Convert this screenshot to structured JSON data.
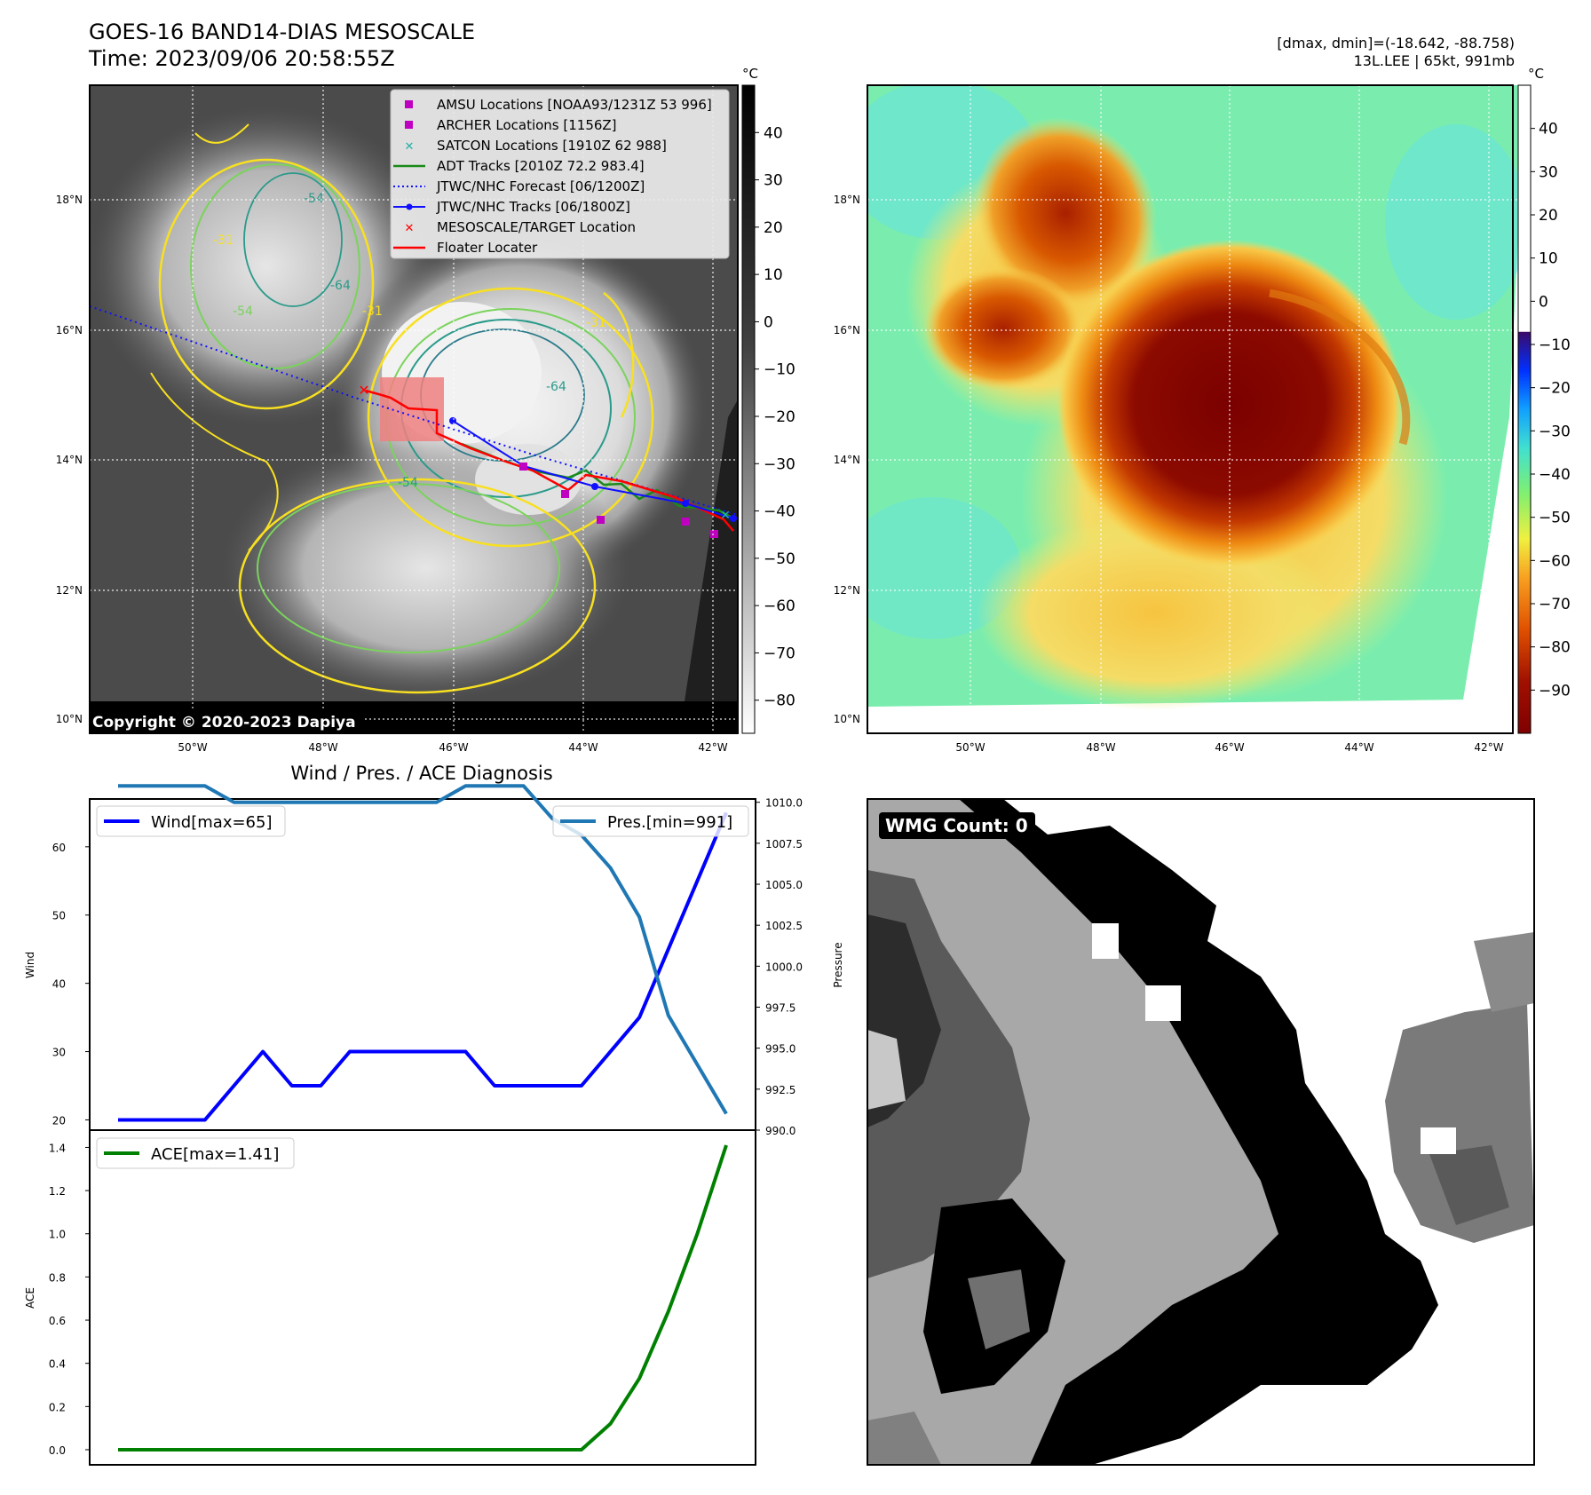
{
  "header": {
    "title": "GOES-16 BAND14-DIAS MESOSCALE",
    "time": "Time: 2023/09/06 20:58:55Z",
    "dmax_dmin": "[dmax, dmin]=(-18.642, -88.758)",
    "storm": "13L.LEE | 65kt, 991mb"
  },
  "map_axes": {
    "lon_ticks": [
      "50°W",
      "48°W",
      "46°W",
      "44°W",
      "42°W"
    ],
    "lat_ticks": [
      "18°N",
      "16°N",
      "14°N",
      "12°N",
      "10°N"
    ]
  },
  "left_map": {
    "copyright": "Copyright © 2020-2023 Dapiya",
    "contour_labels": [
      "-31",
      "-54",
      "-64",
      "-31",
      "-54",
      "-31",
      "-64",
      "-54"
    ],
    "legend": [
      {
        "label": "AMSU Locations [NOAA93/1231Z 53 996]",
        "color": "#c000c0",
        "marker": "square"
      },
      {
        "label": "ARCHER Locations [1156Z]",
        "color": "#c000c0",
        "marker": "square"
      },
      {
        "label": "SATCON Locations [1910Z 62 988]",
        "color": "#20b2aa",
        "marker": "x"
      },
      {
        "label": "ADT Tracks [2010Z 72.2 983.4]",
        "color": "#1a8a1a",
        "marker": "line"
      },
      {
        "label": "JTWC/NHC Forecast [06/1200Z]",
        "color": "#1010ff",
        "marker": "dotted"
      },
      {
        "label": "JTWC/NHC Tracks [06/1800Z]",
        "color": "#1010ff",
        "marker": "line-dot"
      },
      {
        "label": "MESOSCALE/TARGET Location",
        "color": "#ff0000",
        "marker": "x"
      },
      {
        "label": "Floater Locater",
        "color": "#ff0000",
        "marker": "line"
      }
    ],
    "colorbar": {
      "unit": "°C",
      "ticks": [
        "40",
        "30",
        "20",
        "10",
        "0",
        "−10",
        "−20",
        "−30",
        "−40",
        "−50",
        "−60",
        "−70",
        "−80"
      ]
    }
  },
  "right_map": {
    "colorbar": {
      "unit": "°C",
      "ticks": [
        "40",
        "30",
        "20",
        "10",
        "0",
        "−10",
        "−20",
        "−30",
        "−40",
        "−50",
        "−60",
        "−70",
        "−80",
        "−90"
      ]
    }
  },
  "wmg": {
    "label": "WMG Count: 0"
  },
  "chart_data": [
    {
      "type": "line",
      "title": "Wind / Pres. / ACE Diagnosis",
      "ylabel": "Wind",
      "ylim": [
        18.5,
        67
      ],
      "yticks": [
        "20",
        "30",
        "40",
        "50",
        "60"
      ],
      "x": [
        0,
        1,
        2,
        3,
        4,
        5,
        6,
        7,
        8,
        9,
        10,
        11,
        12,
        13,
        14,
        15,
        16,
        17,
        18,
        19,
        20,
        21
      ],
      "series": [
        {
          "name": "Wind[max=65]",
          "color": "#0000ff",
          "values": [
            20,
            20,
            20,
            20,
            25,
            30,
            25,
            25,
            30,
            30,
            30,
            30,
            30,
            25,
            25,
            25,
            25,
            30,
            35,
            45,
            55,
            65
          ]
        }
      ]
    },
    {
      "type": "line",
      "ylabel": "Pressure",
      "ylim": [
        990,
        1010.2
      ],
      "yticks": [
        "990.0",
        "992.5",
        "995.0",
        "997.5",
        "1000.0",
        "1002.5",
        "1005.0",
        "1007.5",
        "1010.0"
      ],
      "x": [
        0,
        1,
        2,
        3,
        4,
        5,
        6,
        7,
        8,
        9,
        10,
        11,
        12,
        13,
        14,
        15,
        16,
        17,
        18,
        19,
        20,
        21
      ],
      "series": [
        {
          "name": "Pres.[min=991]",
          "color": "#1f77b4",
          "values": [
            1011,
            1011,
            1011,
            1011,
            1010,
            1010,
            1010,
            1010,
            1010,
            1010,
            1010,
            1010,
            1011,
            1011,
            1011,
            1009,
            1008,
            1006,
            1003,
            997,
            994,
            991
          ]
        }
      ]
    },
    {
      "type": "line",
      "ylabel": "ACE",
      "ylim": [
        -0.07,
        1.48
      ],
      "yticks": [
        "0.0",
        "0.2",
        "0.4",
        "0.6",
        "0.8",
        "1.0",
        "1.2",
        "1.4"
      ],
      "x": [
        0,
        1,
        2,
        3,
        4,
        5,
        6,
        7,
        8,
        9,
        10,
        11,
        12,
        13,
        14,
        15,
        16,
        17,
        18,
        19,
        20,
        21
      ],
      "series": [
        {
          "name": "ACE[max=1.41]",
          "color": "#008000",
          "values": [
            0,
            0,
            0,
            0,
            0,
            0,
            0,
            0,
            0,
            0,
            0,
            0,
            0,
            0,
            0,
            0,
            0,
            0.12,
            0.33,
            0.64,
            1.0,
            1.41
          ]
        }
      ]
    }
  ]
}
